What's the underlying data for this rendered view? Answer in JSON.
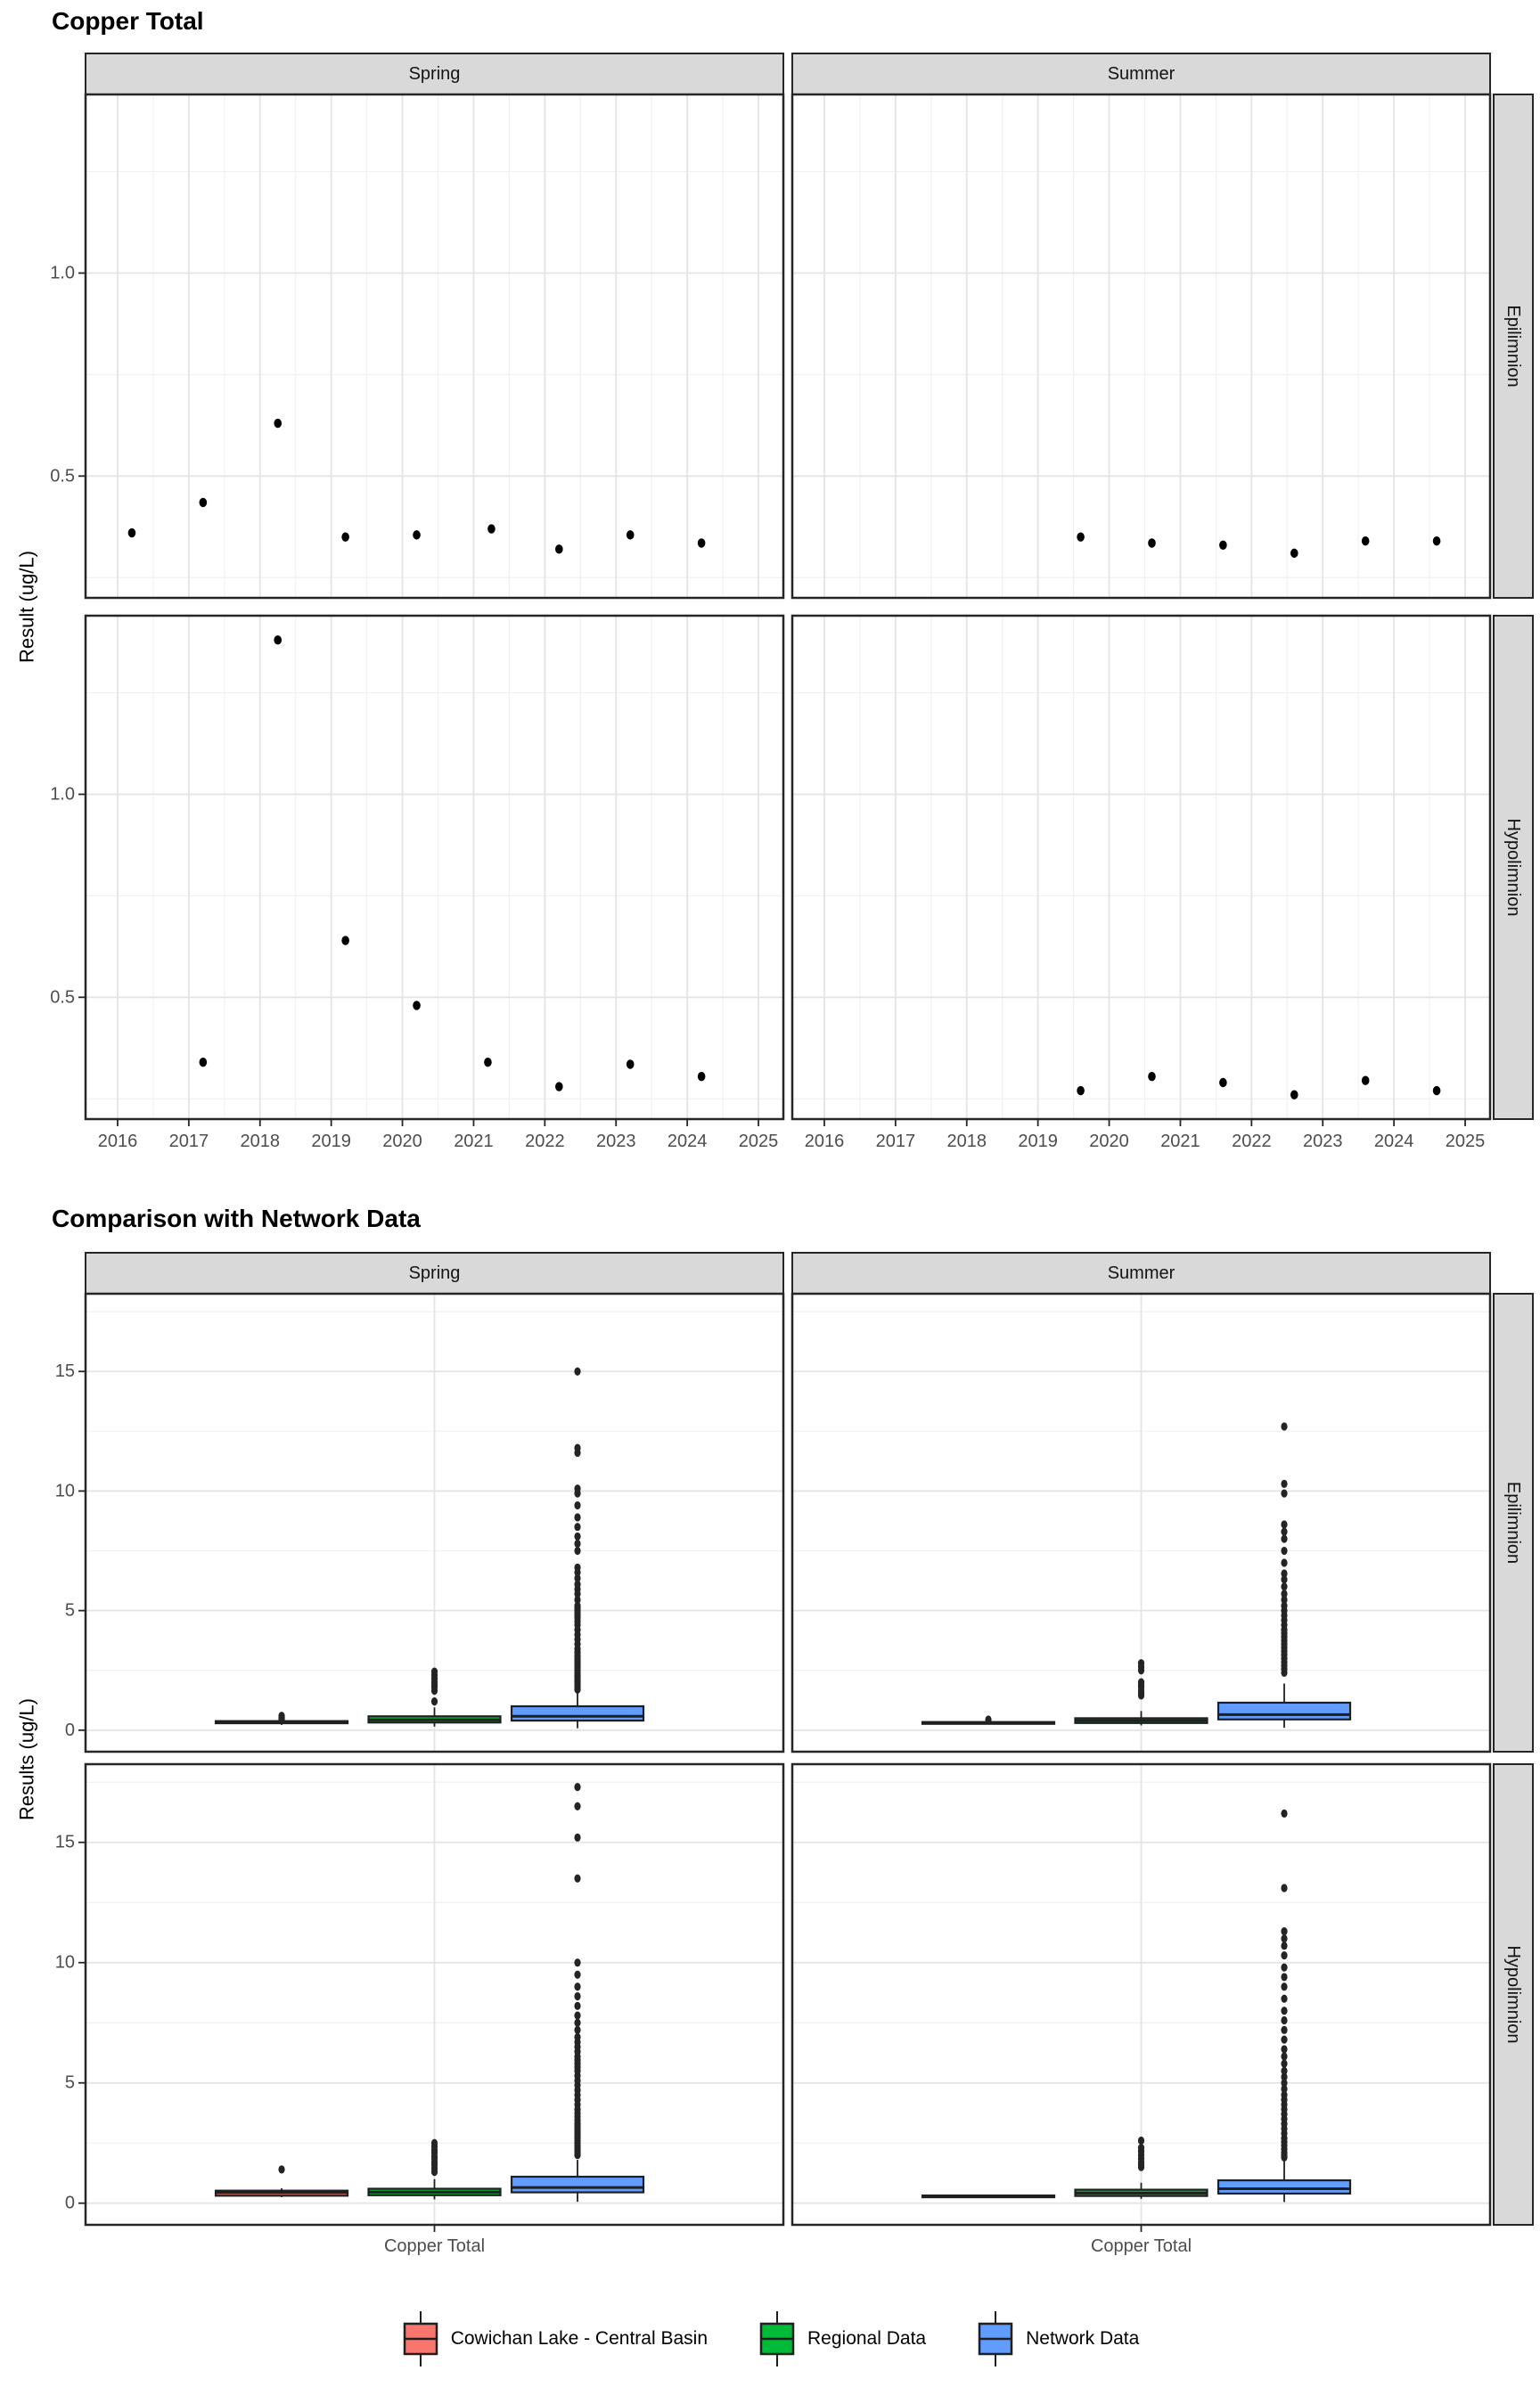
{
  "colors": {
    "background": "#FFFFFF",
    "strip_bg": "#D9D9D9",
    "panel_border": "#262626",
    "grid_major": "#E4E4E4",
    "grid_minor": "#F1F1F1",
    "point": "#000000",
    "box_stroke": "#1F1F1F",
    "outlier": "#242424",
    "tick_text": "#4D4D4D",
    "cowichan": "#F8766D",
    "regional": "#00BA38",
    "network": "#619CFF"
  },
  "legend": {
    "items": [
      {
        "key": "cowichan",
        "label": "Cowichan Lake - Central Basin",
        "color": "#F8766D"
      },
      {
        "key": "regional",
        "label": "Regional Data",
        "color": "#00BA38"
      },
      {
        "key": "network",
        "label": "Network Data",
        "color": "#619CFF"
      }
    ]
  },
  "chart_data": [
    {
      "id": "copper-total-trend",
      "type": "scatter",
      "title": "Copper Total",
      "ylabel": "Result (ug/L)",
      "facet_cols": [
        "Spring",
        "Summer"
      ],
      "facet_rows": [
        "Epilimnion",
        "Hypolimnion"
      ],
      "x_ticks": [
        2016,
        2017,
        2018,
        2019,
        2020,
        2021,
        2022,
        2023,
        2024,
        2025
      ],
      "xlim": [
        2015.55,
        2025.35
      ],
      "ylim": [
        0.2,
        1.44
      ],
      "y_ticks": [
        {
          "label": "0.5",
          "value": 0.5
        },
        {
          "label": "1.0",
          "value": 1.0
        }
      ],
      "grid": true,
      "panels": [
        {
          "row": "Epilimnion",
          "col": "Spring",
          "points": [
            [
              2016.2,
              0.36
            ],
            [
              2017.2,
              0.435
            ],
            [
              2018.25,
              0.63
            ],
            [
              2019.2,
              0.35
            ],
            [
              2020.2,
              0.355
            ],
            [
              2021.25,
              0.37
            ],
            [
              2022.2,
              0.32
            ],
            [
              2023.2,
              0.355
            ],
            [
              2024.2,
              0.335
            ]
          ]
        },
        {
          "row": "Epilimnion",
          "col": "Summer",
          "points": [
            [
              2019.6,
              0.35
            ],
            [
              2020.6,
              0.335
            ],
            [
              2021.6,
              0.33
            ],
            [
              2022.6,
              0.31
            ],
            [
              2023.6,
              0.34
            ],
            [
              2024.6,
              0.34
            ]
          ]
        },
        {
          "row": "Hypolimnion",
          "col": "Spring",
          "points": [
            [
              2017.2,
              0.34
            ],
            [
              2018.25,
              1.38
            ],
            [
              2019.2,
              0.64
            ],
            [
              2020.2,
              0.48
            ],
            [
              2021.2,
              0.34
            ],
            [
              2022.2,
              0.28
            ],
            [
              2023.2,
              0.335
            ],
            [
              2024.2,
              0.305
            ]
          ]
        },
        {
          "row": "Hypolimnion",
          "col": "Summer",
          "points": [
            [
              2019.6,
              0.27
            ],
            [
              2020.6,
              0.305
            ],
            [
              2021.6,
              0.29
            ],
            [
              2022.6,
              0.26
            ],
            [
              2023.6,
              0.295
            ],
            [
              2024.6,
              0.27
            ]
          ]
        }
      ]
    },
    {
      "id": "network-comparison",
      "type": "box",
      "title": "Comparison with Network Data",
      "ylabel": "Results (ug/L)",
      "x_category": "Copper Total",
      "facet_cols": [
        "Spring",
        "Summer"
      ],
      "facet_rows": [
        "Epilimnion",
        "Hypolimnion"
      ],
      "ylim": [
        -0.9,
        18.25
      ],
      "y_ticks": [
        {
          "label": "0",
          "value": 0
        },
        {
          "label": "5",
          "value": 5
        },
        {
          "label": "10",
          "value": 10
        },
        {
          "label": "15",
          "value": 15
        }
      ],
      "series_order": [
        "cowichan",
        "regional",
        "network"
      ],
      "panels": [
        {
          "row": "Epilimnion",
          "col": "Spring",
          "boxes": [
            {
              "series": "cowichan",
              "lo": 0.22,
              "q1": 0.29,
              "median": 0.33,
              "q3": 0.38,
              "hi": 0.44,
              "outliers": [
                0.45,
                0.5,
                0.55,
                0.6
              ]
            },
            {
              "series": "regional",
              "lo": 0.15,
              "q1": 0.32,
              "median": 0.43,
              "q3": 0.58,
              "hi": 0.95,
              "outliers": [
                1.2,
                1.65,
                1.8,
                1.9,
                2.0,
                2.15,
                2.3,
                2.45
              ]
            },
            {
              "series": "network",
              "lo": 0.08,
              "q1": 0.4,
              "median": 0.58,
              "q3": 1.0,
              "hi": 1.55,
              "outliers": [
                1.7,
                1.8,
                1.9,
                2.0,
                2.05,
                2.1,
                2.2,
                2.3,
                2.4,
                2.5,
                2.6,
                2.7,
                2.8,
                2.9,
                3.0,
                3.1,
                3.25,
                3.4,
                3.6,
                3.8,
                4.0,
                4.2,
                4.4,
                4.55,
                4.7,
                4.8,
                4.9,
                5.0,
                5.1,
                5.2,
                5.45,
                5.7,
                5.9,
                6.1,
                6.35,
                6.6,
                6.8,
                7.5,
                7.8,
                8.1,
                8.5,
                8.9,
                9.4,
                9.9,
                10.1,
                11.6,
                11.8,
                15.0
              ]
            }
          ]
        },
        {
          "row": "Epilimnion",
          "col": "Summer",
          "boxes": [
            {
              "series": "cowichan",
              "lo": 0.26,
              "q1": 0.28,
              "median": 0.31,
              "q3": 0.34,
              "hi": 0.37,
              "outliers": [
                0.44
              ]
            },
            {
              "series": "regional",
              "lo": 0.2,
              "q1": 0.3,
              "median": 0.4,
              "q3": 0.5,
              "hi": 0.8,
              "outliers": [
                1.45,
                1.55,
                1.65,
                1.8,
                1.9,
                2.0,
                2.5,
                2.65,
                2.8
              ]
            },
            {
              "series": "network",
              "lo": 0.1,
              "q1": 0.45,
              "median": 0.65,
              "q3": 1.15,
              "hi": 1.95,
              "outliers": [
                2.4,
                2.55,
                2.7,
                2.85,
                3.0,
                3.15,
                3.3,
                3.45,
                3.6,
                3.75,
                3.9,
                4.05,
                4.2,
                4.4,
                4.6,
                4.8,
                5.0,
                5.2,
                5.45,
                5.7,
                6.0,
                6.3,
                6.55,
                7.0,
                7.5,
                8.0,
                8.3,
                8.6,
                9.9,
                10.3,
                12.7
              ]
            }
          ]
        },
        {
          "row": "Hypolimnion",
          "col": "Spring",
          "boxes": [
            {
              "series": "cowichan",
              "lo": 0.25,
              "q1": 0.31,
              "median": 0.44,
              "q3": 0.52,
              "hi": 0.62,
              "outliers": [
                1.4
              ]
            },
            {
              "series": "regional",
              "lo": 0.16,
              "q1": 0.33,
              "median": 0.46,
              "q3": 0.6,
              "hi": 1.0,
              "outliers": [
                1.3,
                1.45,
                1.6,
                1.7,
                1.85,
                1.95,
                2.1,
                2.2,
                2.35,
                2.5
              ]
            },
            {
              "series": "network",
              "lo": 0.06,
              "q1": 0.45,
              "median": 0.65,
              "q3": 1.1,
              "hi": 1.8,
              "outliers": [
                2.0,
                2.1,
                2.2,
                2.3,
                2.4,
                2.5,
                2.6,
                2.7,
                2.8,
                2.9,
                3.0,
                3.1,
                3.2,
                3.3,
                3.45,
                3.6,
                3.75,
                3.9,
                4.1,
                4.3,
                4.5,
                4.7,
                4.9,
                5.1,
                5.3,
                5.5,
                5.65,
                5.8,
                5.95,
                6.1,
                6.3,
                6.5,
                6.7,
                6.9,
                7.2,
                7.5,
                7.8,
                8.2,
                8.6,
                9.0,
                9.5,
                10.0,
                13.5,
                15.2,
                16.5,
                17.3
              ]
            }
          ]
        },
        {
          "row": "Hypolimnion",
          "col": "Summer",
          "boxes": [
            {
              "series": "cowichan",
              "lo": 0.24,
              "q1": 0.26,
              "median": 0.29,
              "q3": 0.32,
              "hi": 0.35,
              "outliers": []
            },
            {
              "series": "regional",
              "lo": 0.18,
              "q1": 0.3,
              "median": 0.42,
              "q3": 0.56,
              "hi": 0.85,
              "outliers": [
                1.5,
                1.6,
                1.7,
                1.85,
                2.0,
                2.15,
                2.3,
                2.6
              ]
            },
            {
              "series": "network",
              "lo": 0.05,
              "q1": 0.4,
              "median": 0.6,
              "q3": 0.95,
              "hi": 1.75,
              "outliers": [
                1.9,
                2.0,
                2.1,
                2.25,
                2.4,
                2.55,
                2.7,
                2.9,
                3.1,
                3.3,
                3.5,
                3.7,
                3.9,
                4.1,
                4.3,
                4.5,
                4.75,
                5.0,
                5.25,
                5.5,
                5.8,
                6.1,
                6.4,
                6.8,
                7.2,
                7.6,
                8.0,
                8.5,
                9.0,
                9.4,
                9.8,
                10.3,
                10.7,
                11.0,
                11.3,
                13.1,
                16.2
              ]
            }
          ]
        }
      ]
    }
  ]
}
